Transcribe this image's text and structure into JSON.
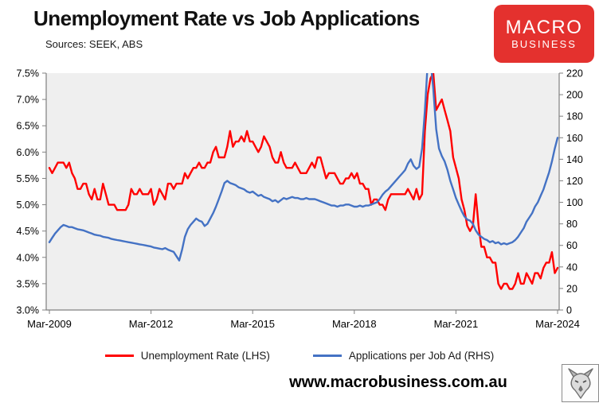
{
  "header": {
    "title": "Unemployment Rate vs Job Applications",
    "subtitle": "Sources: SEEK, ABS",
    "logo": {
      "line1": "MACRO",
      "line2": "BUSINESS",
      "bg_color": "#e4312e",
      "text_color": "#ffffff"
    }
  },
  "chart_data": {
    "type": "line",
    "title": "Unemployment Rate vs Job Applications",
    "grid": false,
    "plot_bg": "#efefef",
    "axis_color": "#808080",
    "legend_position": "bottom",
    "x_axis": {
      "range": [
        2009.1667,
        2024.1667
      ],
      "tick_positions": [
        2009.1667,
        2012.1667,
        2015.1667,
        2018.1667,
        2021.1667,
        2024.1667
      ],
      "tick_labels": [
        "Mar-2009",
        "Mar-2012",
        "Mar-2015",
        "Mar-2018",
        "Mar-2021",
        "Mar-2024"
      ]
    },
    "left_axis": {
      "min": 3.0,
      "max": 7.5,
      "step": 0.5,
      "tick_labels": [
        "7.5%",
        "7.0%",
        "6.5%",
        "6.0%",
        "5.5%",
        "5.0%",
        "4.5%",
        "4.0%",
        "3.5%",
        "3.0%"
      ],
      "tick_values": [
        7.5,
        7.0,
        6.5,
        6.0,
        5.5,
        5.0,
        4.5,
        4.0,
        3.5,
        3.0
      ]
    },
    "right_axis": {
      "min": 0,
      "max": 220,
      "step": 20,
      "tick_labels": [
        "220",
        "200",
        "180",
        "160",
        "140",
        "120",
        "100",
        "80",
        "60",
        "40",
        "20",
        "0"
      ],
      "tick_values": [
        220,
        200,
        180,
        160,
        140,
        120,
        100,
        80,
        60,
        40,
        20,
        0
      ]
    },
    "series": [
      {
        "name": "Unemployment Rate (LHS)",
        "axis": "left",
        "color": "#ff0000",
        "start": 2009.1667,
        "frequency": "monthly",
        "monthly_values": [
          5.7,
          5.6,
          5.7,
          5.8,
          5.8,
          5.8,
          5.7,
          5.8,
          5.6,
          5.5,
          5.3,
          5.3,
          5.4,
          5.4,
          5.2,
          5.1,
          5.3,
          5.1,
          5.1,
          5.4,
          5.2,
          5.0,
          5.0,
          5.0,
          4.9,
          4.9,
          4.9,
          4.9,
          5.0,
          5.3,
          5.2,
          5.2,
          5.3,
          5.2,
          5.2,
          5.2,
          5.3,
          5.0,
          5.1,
          5.3,
          5.2,
          5.1,
          5.4,
          5.4,
          5.3,
          5.4,
          5.4,
          5.4,
          5.6,
          5.5,
          5.6,
          5.7,
          5.7,
          5.8,
          5.7,
          5.7,
          5.8,
          5.8,
          6.0,
          6.1,
          5.9,
          5.9,
          5.9,
          6.1,
          6.4,
          6.1,
          6.2,
          6.2,
          6.3,
          6.2,
          6.4,
          6.2,
          6.2,
          6.1,
          6.0,
          6.1,
          6.3,
          6.2,
          6.1,
          5.9,
          5.8,
          5.8,
          6.0,
          5.8,
          5.7,
          5.7,
          5.7,
          5.8,
          5.7,
          5.6,
          5.6,
          5.6,
          5.7,
          5.8,
          5.7,
          5.9,
          5.9,
          5.7,
          5.5,
          5.6,
          5.6,
          5.6,
          5.5,
          5.4,
          5.4,
          5.5,
          5.5,
          5.6,
          5.5,
          5.6,
          5.4,
          5.4,
          5.3,
          5.3,
          5.0,
          5.1,
          5.1,
          5.0,
          5.0,
          4.9,
          5.1,
          5.2,
          5.2,
          5.2,
          5.2,
          5.2,
          5.2,
          5.3,
          5.2,
          5.1,
          5.3,
          5.1,
          5.2,
          6.4,
          7.1,
          7.4,
          7.5,
          6.8,
          6.9,
          7.0,
          6.8,
          6.6,
          6.4,
          5.9,
          5.7,
          5.5,
          5.1,
          4.9,
          4.6,
          4.5,
          4.6,
          5.2,
          4.6,
          4.2,
          4.2,
          4.0,
          4.0,
          3.9,
          3.9,
          3.5,
          3.4,
          3.5,
          3.5,
          3.4,
          3.4,
          3.5,
          3.7,
          3.5,
          3.5,
          3.7,
          3.6,
          3.5,
          3.7,
          3.7,
          3.6,
          3.8,
          3.9,
          3.9,
          4.1,
          3.7,
          3.8
        ]
      },
      {
        "name": "Applications per Job Ad (RHS)",
        "axis": "right",
        "color": "#4472c4",
        "start": 2009.1667,
        "frequency": "monthly",
        "monthly_values": [
          63,
          67,
          71,
          74,
          77,
          79,
          78,
          77,
          77,
          76,
          75,
          74.5,
          74,
          73,
          72,
          71,
          70,
          69.5,
          69,
          68,
          67.5,
          67,
          66,
          65.5,
          65,
          64.5,
          64,
          63.5,
          63,
          62.5,
          62,
          61.5,
          61,
          60.5,
          60,
          59.5,
          59,
          58,
          57.5,
          57,
          56.5,
          57.5,
          56,
          55,
          54,
          50,
          46,
          56,
          68,
          75,
          79,
          82,
          85,
          83,
          82,
          78,
          80,
          85,
          90,
          96,
          103,
          110,
          118,
          120,
          118,
          117,
          116,
          114,
          113,
          112,
          110,
          109,
          110,
          108,
          106,
          107,
          105,
          104,
          103,
          101,
          102,
          100,
          102,
          104,
          103,
          104,
          105,
          104,
          104,
          103,
          103,
          104,
          103,
          103,
          103,
          102,
          101,
          100,
          99,
          98,
          97,
          97,
          96,
          97,
          97,
          98,
          98,
          97,
          96,
          96,
          97,
          96,
          97,
          97,
          98,
          99,
          100,
          103,
          107,
          110,
          112,
          115,
          118,
          121,
          124,
          127,
          130,
          136,
          140,
          134,
          131,
          133,
          150,
          185,
          230,
          232,
          205,
          168,
          150,
          143,
          138,
          130,
          120,
          112,
          104,
          98,
          92,
          87,
          84,
          83,
          80,
          74,
          70,
          68,
          66,
          65,
          63,
          64,
          62,
          63,
          61,
          62,
          61,
          62,
          63,
          65,
          68,
          72,
          76,
          82,
          86,
          90,
          96,
          100,
          106,
          112,
          120,
          128,
          138,
          150,
          160
        ]
      }
    ]
  },
  "legend": {
    "items": [
      {
        "label": "Unemployment Rate (LHS)",
        "color": "#ff0000"
      },
      {
        "label": "Applications per Job Ad (RHS)",
        "color": "#4472c4"
      }
    ]
  },
  "footer": {
    "website": "www.macrobusiness.com.au"
  }
}
